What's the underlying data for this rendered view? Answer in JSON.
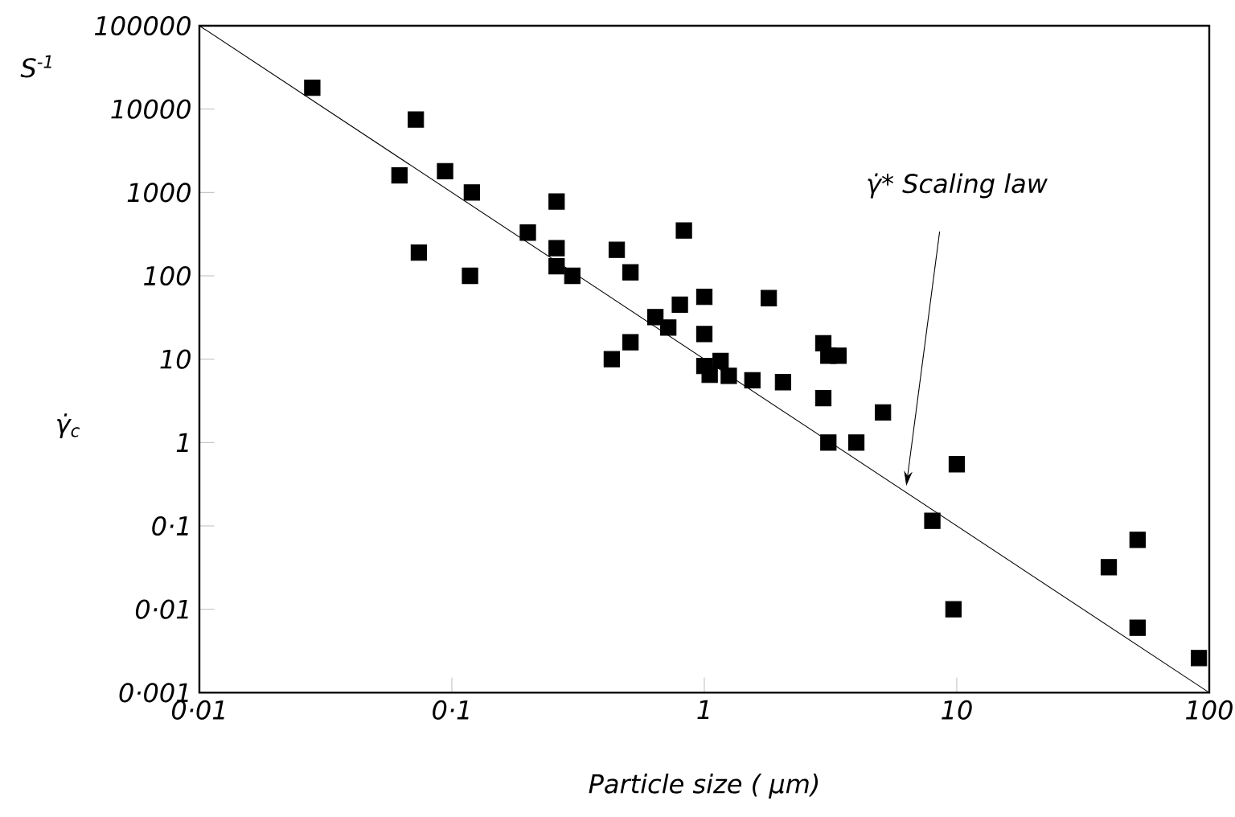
{
  "chart_data": {
    "type": "scatter",
    "xlabel": "Particle size ( μm)",
    "ylabel": "γ̇$_{c}$",
    "log": "xy",
    "xlim": [
      0.01,
      100
    ],
    "ylim": [
      0.001,
      100000
    ],
    "xticks": [
      {
        "value": 0.01,
        "label": "0·01"
      },
      {
        "value": 0.1,
        "label": "0·1"
      },
      1,
      10,
      100
    ],
    "yticks": [
      {
        "value": 0.001,
        "label": "0·001"
      },
      {
        "value": 0.01,
        "label": "0·01"
      },
      {
        "value": 0.1,
        "label": "0·1"
      },
      1,
      10,
      100,
      1000,
      10000,
      100000
    ],
    "series": [
      {
        "marker": "square",
        "color": "#000000",
        "x": [
          0.028,
          0.072,
          0.062,
          0.094,
          0.12,
          0.074,
          0.118,
          0.2,
          0.26,
          0.26,
          0.26,
          0.3,
          0.45,
          0.51,
          0.43,
          0.51,
          0.83,
          0.64,
          0.72,
          0.8,
          1.0,
          1.0,
          1.8,
          1.0,
          1.16,
          1.05,
          1.25,
          1.55,
          2.05,
          2.96,
          3.1,
          3.4,
          2.96,
          5.1,
          3.1,
          4.0,
          10,
          8.0,
          9.7,
          40,
          52,
          52,
          91
        ],
        "values": [
          18000,
          7500,
          1600,
          1800,
          1000,
          190,
          100,
          330,
          780,
          215,
          130,
          100,
          205,
          110,
          10,
          16,
          350,
          32,
          24,
          45,
          56,
          20,
          54,
          8.3,
          9.5,
          6.5,
          6.3,
          5.6,
          5.3,
          15.5,
          11,
          11,
          3.4,
          2.3,
          1.0,
          1.0,
          0.55,
          0.115,
          0.01,
          0.032,
          0.068,
          0.006,
          0.0026
        ]
      },
      {
        "type": "line",
        "color": "#000000",
        "x": [
          0.01,
          100
        ],
        "values": [
          100000,
          0.001
        ]
      }
    ],
    "annotations": [
      "S$^{-1}$",
      "γ̇* Scaling law"
    ]
  }
}
